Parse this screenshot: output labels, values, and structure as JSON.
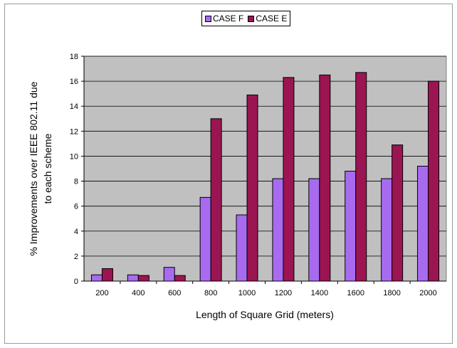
{
  "chart_data": {
    "type": "bar",
    "title": "",
    "xlabel": "Length of Square Grid (meters)",
    "ylabel_lines": [
      "% Improvements over IEEE 802.11 due",
      "to each scheme"
    ],
    "categories": [
      "200",
      "400",
      "600",
      "800",
      "1000",
      "1200",
      "1400",
      "1600",
      "1800",
      "2000"
    ],
    "ylim": [
      0,
      18
    ],
    "yticks": [
      "0",
      "2",
      "4",
      "6",
      "8",
      "10",
      "12",
      "14",
      "16",
      "18"
    ],
    "grid": true,
    "legend_position": "top",
    "series": [
      {
        "name": "CASE F",
        "color": "#a86bf0",
        "values": [
          0.5,
          0.5,
          1.1,
          6.7,
          5.3,
          8.2,
          8.2,
          8.8,
          8.2,
          9.2
        ]
      },
      {
        "name": "CASE E",
        "color": "#9b1552",
        "values": [
          1.0,
          0.45,
          0.45,
          13.0,
          14.9,
          16.3,
          16.5,
          16.7,
          10.9,
          16.0
        ]
      }
    ],
    "plot_background": "#c0c0c0"
  }
}
